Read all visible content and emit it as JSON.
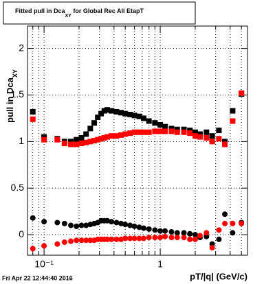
{
  "chart_data": {
    "type": "scatter",
    "title": [
      "Fitted pull in Dca",
      "XY",
      " for Global Rec All EtapT"
    ],
    "ylabel": [
      "pull in Dca",
      "XY"
    ],
    "xlabel": "pT/|q| (GeV/c)",
    "date": "Fri Apr 22 12:44:40 2016",
    "xscale": "log",
    "grid": true,
    "xlim": [
      0.072,
      5.64
    ],
    "ylim": [
      -0.22,
      2.24
    ],
    "xticks": [
      {
        "value": 0.1,
        "label": "10⁻¹"
      },
      1
    ],
    "xminorticks": [
      0.08,
      0.09,
      0.2,
      0.3,
      0.4,
      0.5,
      0.6,
      0.7,
      0.8,
      0.9,
      2,
      3,
      4,
      5
    ],
    "yticks": [
      0,
      0.5,
      1,
      1.5,
      2
    ],
    "x": [
      0.08,
      0.1,
      0.13,
      0.15,
      0.17,
      0.19,
      0.21,
      0.23,
      0.25,
      0.27,
      0.29,
      0.31,
      0.33,
      0.35,
      0.38,
      0.42,
      0.46,
      0.5,
      0.55,
      0.6,
      0.66,
      0.72,
      0.8,
      0.9,
      1.0,
      1.1,
      1.25,
      1.4,
      1.6,
      1.8,
      2.0,
      2.2,
      2.5,
      2.8,
      3.2,
      3.6,
      4.2,
      5.0
    ],
    "series": [
      {
        "color": "#000000",
        "marker": "square",
        "values": [
          1.32,
          1.05,
          1.03,
          1.0,
          1.0,
          1.02,
          1.04,
          1.08,
          1.14,
          1.2,
          1.26,
          1.3,
          1.33,
          1.34,
          1.33,
          1.32,
          1.31,
          1.3,
          1.29,
          1.28,
          1.27,
          1.25,
          1.22,
          1.2,
          1.18,
          1.16,
          1.14,
          1.13,
          1.13,
          1.12,
          1.1,
          1.08,
          1.1,
          1.06,
          1.12,
          1.0,
          1.33,
          1.51
        ]
      },
      {
        "color": "#ff0000",
        "marker": "square",
        "values": [
          1.24,
          1.02,
          1.02,
          0.98,
          0.97,
          0.97,
          0.98,
          0.99,
          1.0,
          1.01,
          1.02,
          1.03,
          1.04,
          1.05,
          1.06,
          1.06,
          1.07,
          1.08,
          1.09,
          1.1,
          1.1,
          1.1,
          1.1,
          1.11,
          1.11,
          1.11,
          1.11,
          1.1,
          1.1,
          1.09,
          1.06,
          1.05,
          1.04,
          1.0,
          1.03,
          0.97,
          1.22,
          1.52
        ]
      },
      {
        "color": "#000000",
        "marker": "circle",
        "values": [
          0.18,
          0.14,
          0.13,
          0.12,
          0.1,
          0.09,
          0.1,
          0.1,
          0.11,
          0.12,
          0.13,
          0.15,
          0.15,
          0.15,
          0.14,
          0.13,
          0.12,
          0.11,
          0.1,
          0.09,
          0.08,
          0.07,
          0.06,
          0.05,
          0.04,
          0.04,
          0.03,
          0.02,
          0.02,
          0.01,
          0.0,
          -0.03,
          -0.02,
          -0.1,
          -0.05,
          0.22,
          0.02,
          0.13
        ]
      },
      {
        "color": "#ff0000",
        "marker": "circle",
        "values": [
          -0.15,
          -0.12,
          -0.1,
          -0.08,
          -0.07,
          -0.06,
          -0.06,
          -0.06,
          -0.06,
          -0.06,
          -0.05,
          -0.05,
          -0.05,
          -0.05,
          -0.05,
          -0.05,
          -0.05,
          -0.04,
          -0.04,
          -0.04,
          -0.04,
          -0.04,
          -0.03,
          -0.03,
          -0.03,
          -0.02,
          -0.03,
          -0.03,
          -0.03,
          -0.05,
          -0.05,
          -0.01,
          0.02,
          -0.14,
          0.05,
          0.12,
          0.12,
          0.12
        ]
      }
    ]
  }
}
